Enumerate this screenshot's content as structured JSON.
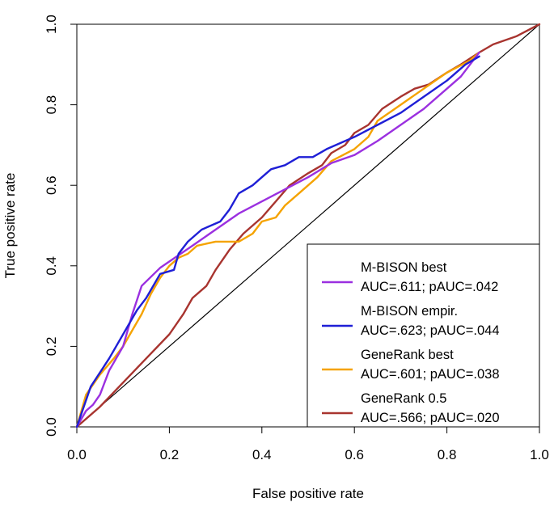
{
  "chart_data": {
    "type": "line",
    "title": "",
    "xlabel": "False positive rate",
    "ylabel": "True positive rate",
    "xlim": [
      0,
      1
    ],
    "ylim": [
      0,
      1
    ],
    "x_ticks": [
      "0.0",
      "0.2",
      "0.4",
      "0.6",
      "0.8",
      "1.0"
    ],
    "y_ticks": [
      "0.0",
      "0.2",
      "0.4",
      "0.6",
      "0.8",
      "1.0"
    ],
    "grid": false,
    "legend_position": "bottom-right",
    "diagonal": {
      "x": [
        0,
        1
      ],
      "y": [
        0,
        1
      ],
      "color": "#000000"
    },
    "series": [
      {
        "name": "M-BISON best",
        "stats": "AUC=.611; pAUC=.042",
        "color": "#9b30e0",
        "x": [
          0,
          0.02,
          0.035,
          0.05,
          0.06,
          0.07,
          0.08,
          0.1,
          0.12,
          0.14,
          0.18,
          0.25,
          0.35,
          0.5,
          0.55,
          0.6,
          0.65,
          0.7,
          0.75,
          0.8,
          0.83,
          0.87
        ],
        "y": [
          0,
          0.04,
          0.055,
          0.08,
          0.11,
          0.14,
          0.16,
          0.2,
          0.28,
          0.35,
          0.395,
          0.45,
          0.53,
          0.62,
          0.655,
          0.675,
          0.71,
          0.75,
          0.79,
          0.84,
          0.87,
          0.93
        ]
      },
      {
        "name": "M-BISON empir.",
        "stats": "AUC=.623; pAUC=.044",
        "color": "#1f1fd6",
        "x": [
          0,
          0.03,
          0.07,
          0.1,
          0.13,
          0.15,
          0.18,
          0.21,
          0.22,
          0.24,
          0.27,
          0.31,
          0.33,
          0.35,
          0.38,
          0.4,
          0.42,
          0.45,
          0.48,
          0.51,
          0.54,
          0.56,
          0.6,
          0.65,
          0.7,
          0.75,
          0.8,
          0.84,
          0.87
        ],
        "y": [
          0,
          0.1,
          0.17,
          0.23,
          0.29,
          0.32,
          0.38,
          0.39,
          0.43,
          0.46,
          0.49,
          0.51,
          0.54,
          0.58,
          0.6,
          0.62,
          0.64,
          0.65,
          0.67,
          0.67,
          0.69,
          0.7,
          0.72,
          0.75,
          0.78,
          0.82,
          0.86,
          0.9,
          0.92
        ]
      },
      {
        "name": "GeneRank best",
        "stats": "AUC=.601; pAUC=.038",
        "color": "#f5a300",
        "x": [
          0,
          0.02,
          0.05,
          0.08,
          0.1,
          0.12,
          0.14,
          0.16,
          0.18,
          0.2,
          0.22,
          0.24,
          0.26,
          0.3,
          0.35,
          0.38,
          0.4,
          0.43,
          0.45,
          0.48,
          0.5,
          0.52,
          0.55,
          0.6,
          0.63,
          0.65,
          0.7,
          0.75,
          0.8,
          0.85,
          0.87
        ],
        "y": [
          0,
          0.08,
          0.13,
          0.17,
          0.2,
          0.24,
          0.28,
          0.33,
          0.37,
          0.4,
          0.42,
          0.43,
          0.45,
          0.46,
          0.46,
          0.48,
          0.51,
          0.52,
          0.55,
          0.58,
          0.6,
          0.62,
          0.66,
          0.69,
          0.72,
          0.76,
          0.8,
          0.84,
          0.88,
          0.91,
          0.93
        ]
      },
      {
        "name": "GeneRank 0.5",
        "stats": "AUC=.566; pAUC=.020",
        "color": "#a8342f",
        "x": [
          0,
          0.05,
          0.1,
          0.15,
          0.2,
          0.23,
          0.25,
          0.28,
          0.3,
          0.33,
          0.36,
          0.4,
          0.43,
          0.46,
          0.5,
          0.53,
          0.55,
          0.58,
          0.6,
          0.63,
          0.66,
          0.7,
          0.73,
          0.76,
          0.8,
          0.83,
          0.87,
          0.9,
          0.95,
          1.0
        ],
        "y": [
          0,
          0.05,
          0.11,
          0.17,
          0.23,
          0.28,
          0.32,
          0.35,
          0.39,
          0.44,
          0.48,
          0.52,
          0.56,
          0.6,
          0.63,
          0.65,
          0.68,
          0.7,
          0.73,
          0.75,
          0.79,
          0.82,
          0.84,
          0.85,
          0.88,
          0.9,
          0.93,
          0.95,
          0.97,
          1.0
        ]
      }
    ]
  }
}
